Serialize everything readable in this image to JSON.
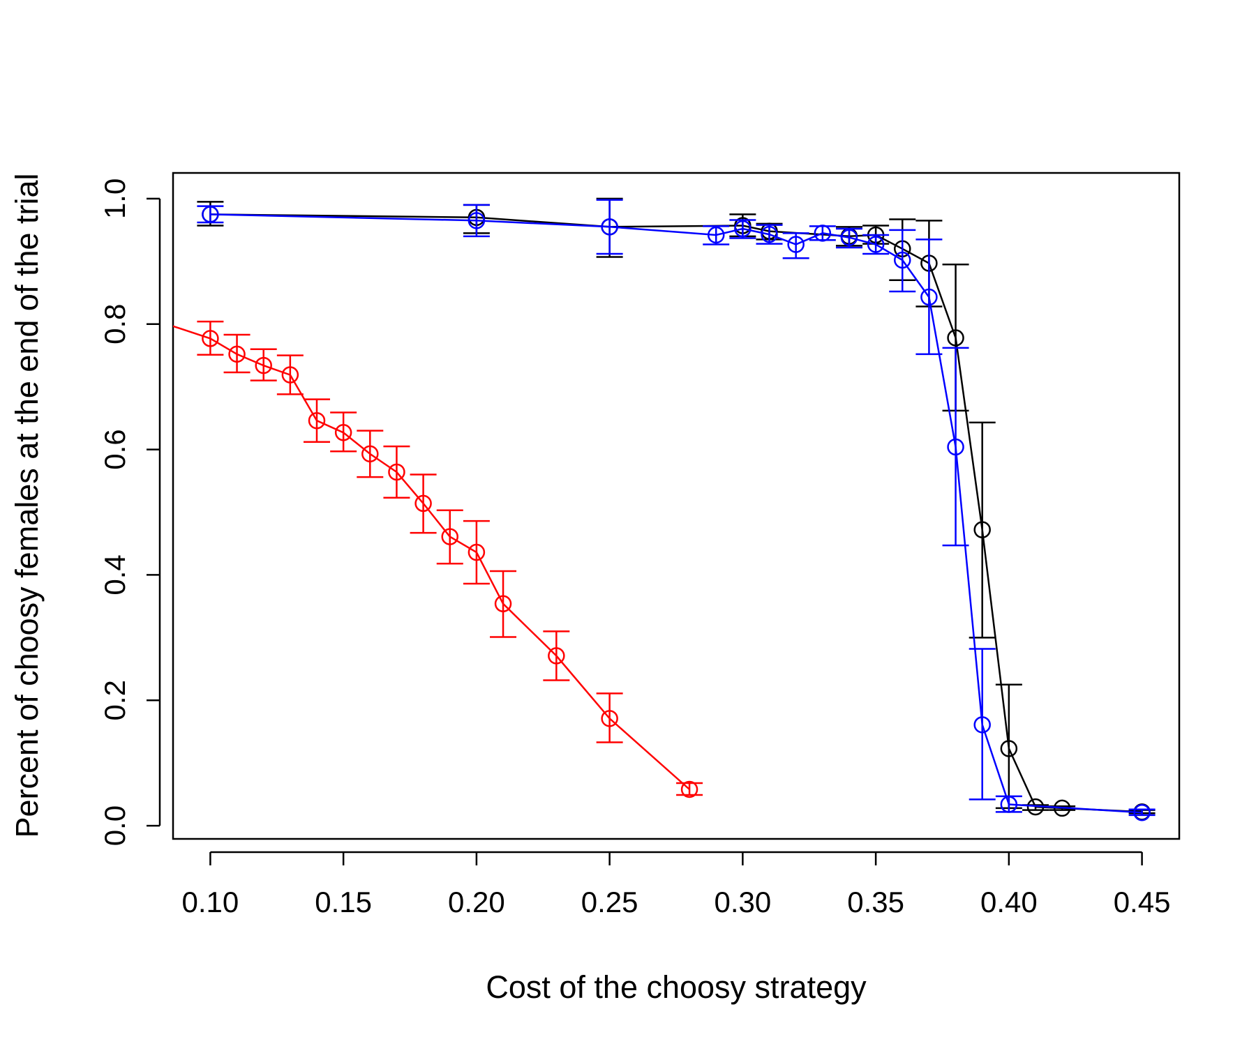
{
  "chart_data": {
    "type": "line",
    "title": "",
    "xlabel": "Cost of the choosy strategy",
    "ylabel": "Percent of choosy females at the end of the trial",
    "xlim": [
      0.086,
      0.464
    ],
    "ylim": [
      -0.021,
      1.041
    ],
    "xticks": [
      "0.10",
      "0.15",
      "0.20",
      "0.25",
      "0.30",
      "0.35",
      "0.40",
      "0.45"
    ],
    "yticks": [
      "0.0",
      "0.2",
      "0.4",
      "0.6",
      "0.8",
      "1.0"
    ],
    "grid": false,
    "markers": "open-circle",
    "error_bars": true,
    "series": [
      {
        "name": "black",
        "color": "#000000",
        "x": [
          0.1,
          0.2,
          0.25,
          0.3,
          0.31,
          0.34,
          0.35,
          0.36,
          0.37,
          0.38,
          0.39,
          0.4,
          0.41,
          0.42,
          0.45
        ],
        "y": [
          0.975,
          0.97,
          0.955,
          0.957,
          0.948,
          0.94,
          0.942,
          0.92,
          0.897,
          0.778,
          0.472,
          0.123,
          0.03,
          0.028,
          0.022
        ],
        "lower": [
          0.957,
          0.945,
          0.907,
          0.94,
          0.935,
          0.925,
          0.928,
          0.87,
          0.828,
          0.662,
          0.3,
          0.028,
          0.025,
          0.025,
          0.02
        ],
        "upper": [
          0.995,
          0.99,
          1.0,
          0.975,
          0.96,
          0.955,
          0.957,
          0.967,
          0.965,
          0.895,
          0.643,
          0.225,
          0.033,
          0.031,
          0.025
        ]
      },
      {
        "name": "blue",
        "color": "#0000ff",
        "x": [
          0.1,
          0.2,
          0.25,
          0.29,
          0.3,
          0.31,
          0.32,
          0.33,
          0.34,
          0.35,
          0.36,
          0.37,
          0.38,
          0.39,
          0.4,
          0.45
        ],
        "y": [
          0.975,
          0.965,
          0.955,
          0.942,
          0.952,
          0.943,
          0.927,
          0.945,
          0.938,
          0.927,
          0.902,
          0.843,
          0.604,
          0.161,
          0.034,
          0.021
        ],
        "lower": [
          0.962,
          0.94,
          0.912,
          0.927,
          0.937,
          0.928,
          0.905,
          0.934,
          0.922,
          0.912,
          0.852,
          0.752,
          0.447,
          0.042,
          0.022,
          0.017
        ],
        "upper": [
          0.988,
          0.99,
          0.998,
          0.956,
          0.966,
          0.958,
          0.945,
          0.956,
          0.952,
          0.942,
          0.95,
          0.935,
          0.762,
          0.282,
          0.047,
          0.026
        ]
      },
      {
        "name": "red",
        "color": "#ff0000",
        "x": [
          0.085,
          0.1,
          0.11,
          0.12,
          0.13,
          0.14,
          0.15,
          0.16,
          0.17,
          0.18,
          0.19,
          0.2,
          0.21,
          0.23,
          0.25,
          0.28
        ],
        "y": [
          0.798,
          0.777,
          0.752,
          0.734,
          0.719,
          0.646,
          0.627,
          0.593,
          0.564,
          0.514,
          0.461,
          0.436,
          0.354,
          0.271,
          0.171,
          0.058
        ],
        "lower": [
          null,
          0.751,
          0.723,
          0.71,
          0.688,
          0.612,
          0.597,
          0.556,
          0.523,
          0.467,
          0.418,
          0.386,
          0.301,
          0.232,
          0.133,
          0.049
        ],
        "upper": [
          null,
          0.804,
          0.783,
          0.76,
          0.75,
          0.68,
          0.659,
          0.63,
          0.605,
          0.56,
          0.503,
          0.486,
          0.406,
          0.31,
          0.211,
          0.068
        ],
        "marker_from_index": 1
      }
    ]
  }
}
